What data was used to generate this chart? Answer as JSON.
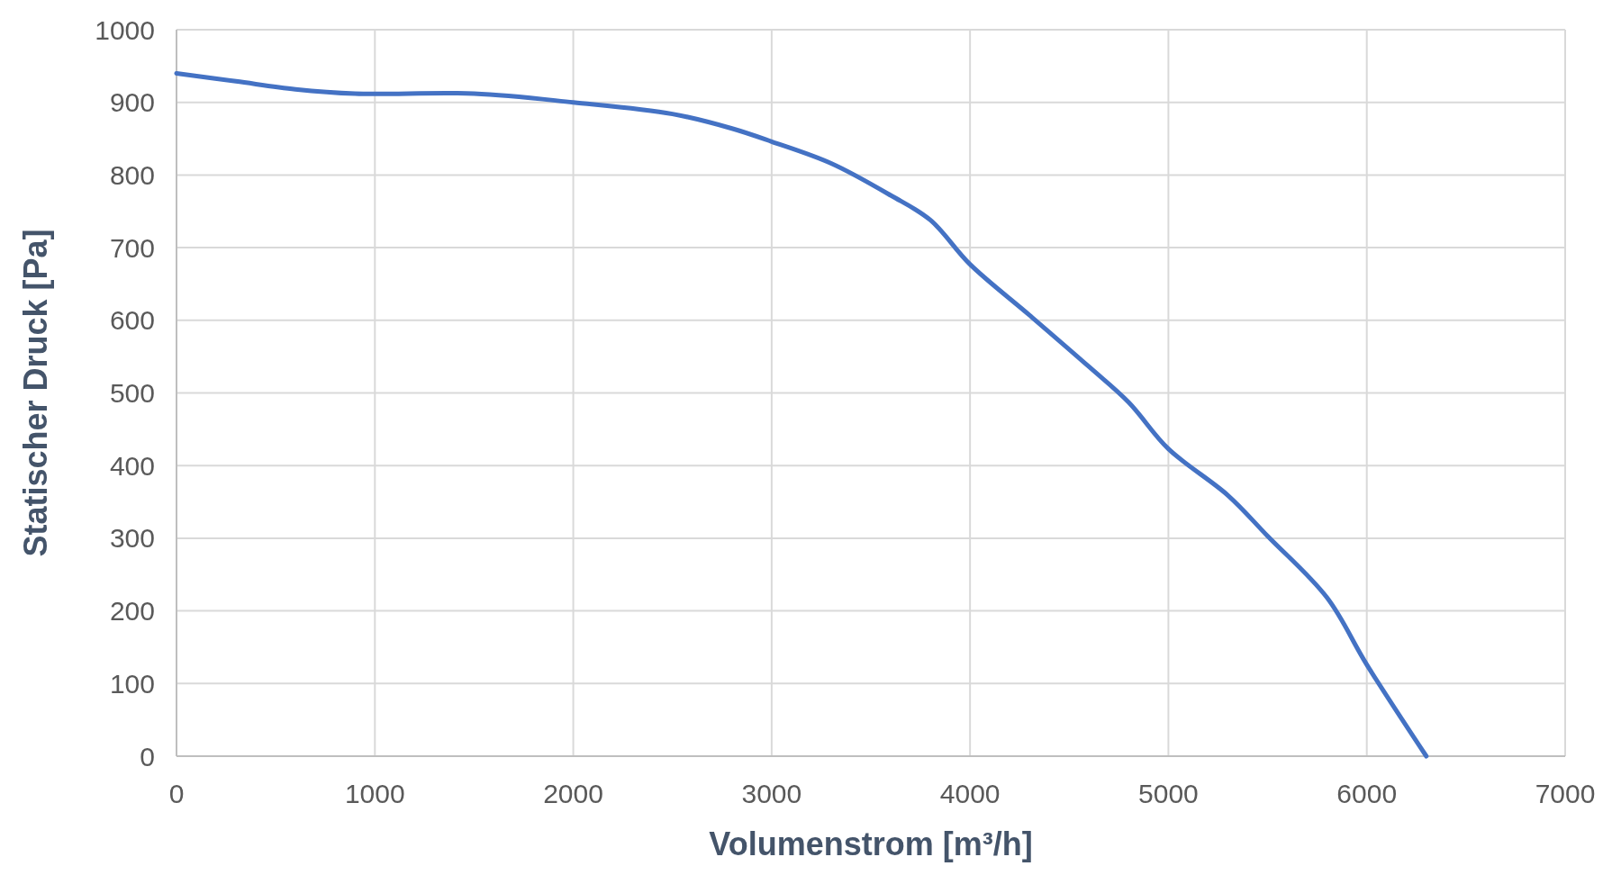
{
  "chart_data": {
    "type": "line",
    "xlabel": "Volumenstrom [m³/h]",
    "ylabel": "Statischer Druck [Pa]",
    "xlim": [
      0,
      7000
    ],
    "xticks": [
      0,
      1000,
      2000,
      3000,
      4000,
      5000,
      6000,
      7000
    ],
    "ylim": [
      0,
      1000
    ],
    "yticks": [
      0,
      100,
      200,
      300,
      400,
      500,
      600,
      700,
      800,
      900,
      1000
    ],
    "grid": true,
    "marker": "none",
    "line_style": "solid",
    "series": [
      {
        "color": "#4472c4",
        "x": [
          0,
          300,
          600,
          900,
          1500,
          2000,
          2500,
          2800,
          3000,
          3300,
          3600,
          3800,
          4000,
          4300,
          4600,
          4800,
          5000,
          5300,
          5500,
          5800,
          6000,
          6300
        ],
        "values": [
          940,
          929,
          918,
          912,
          912,
          900,
          884,
          864,
          846,
          816,
          772,
          738,
          677,
          607,
          536,
          487,
          423,
          359,
          303,
          218,
          126,
          0
        ]
      }
    ]
  }
}
